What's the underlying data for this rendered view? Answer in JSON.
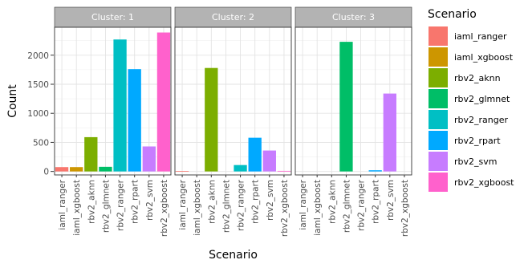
{
  "chart_data": {
    "type": "bar",
    "xlabel": "Scenario",
    "ylabel": "Count",
    "ylim": [
      -60,
      2480
    ],
    "y_ticks": [
      0,
      500,
      1000,
      1500,
      2000
    ],
    "y_tick_labels": [
      "0",
      "500",
      "1000",
      "1500",
      "2000"
    ],
    "grid": true,
    "legend_position": "right",
    "legend_title": "Scenario",
    "categories": [
      "iaml_ranger",
      "iaml_xgboost",
      "rbv2_aknn",
      "rbv2_glmnet",
      "rbv2_ranger",
      "rbv2_rpart",
      "rbv2_svm",
      "rbv2_xgboost"
    ],
    "colors": [
      "#F8766D",
      "#CD9600",
      "#7CAE00",
      "#00BE67",
      "#00BFC4",
      "#00A9FF",
      "#C77CFF",
      "#FF61CC"
    ],
    "panels": [
      {
        "label": "Cluster: 1",
        "values": [
          75,
          75,
          590,
          80,
          2270,
          1760,
          430,
          2390
        ]
      },
      {
        "label": "Cluster: 2",
        "values": [
          8,
          0,
          1780,
          0,
          110,
          580,
          360,
          10
        ]
      },
      {
        "label": "Cluster: 3",
        "values": [
          0,
          0,
          0,
          2230,
          0,
          20,
          1340,
          0
        ]
      }
    ]
  }
}
